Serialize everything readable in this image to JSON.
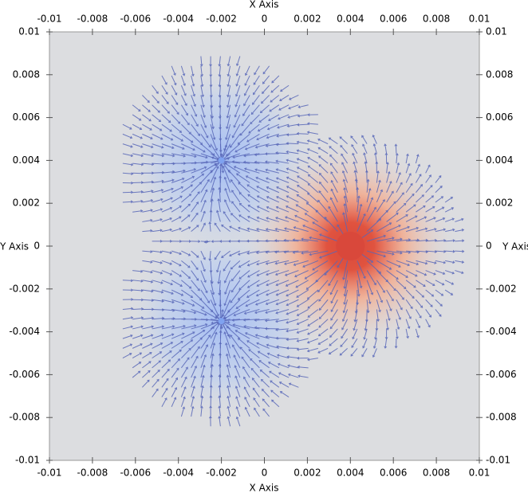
{
  "chart_data": {
    "type": "vector",
    "x_label": "X Axis",
    "y_label": "Y Axis",
    "xlim": [
      -0.01,
      0.01
    ],
    "ylim": [
      -0.01,
      0.01
    ],
    "xticks": [
      -0.01,
      -0.008,
      -0.006,
      -0.004,
      -0.002,
      0,
      0.002,
      0.004,
      0.006,
      0.008,
      0.01
    ],
    "yticks": [
      -0.01,
      -0.008,
      -0.006,
      -0.004,
      -0.002,
      0,
      0.002,
      0.004,
      0.006,
      0.008,
      0.01
    ],
    "sources": {
      "x": [
        -0.002,
        -0.002,
        0.004
      ],
      "y": [
        0.004,
        -0.0035,
        0
      ],
      "charge": [
        -1,
        -1,
        1
      ]
    },
    "negative_color": "#7fa2f0",
    "positive_color": "#d9483b",
    "arrow_color": "#5867b8",
    "background": "#dcdde0"
  }
}
